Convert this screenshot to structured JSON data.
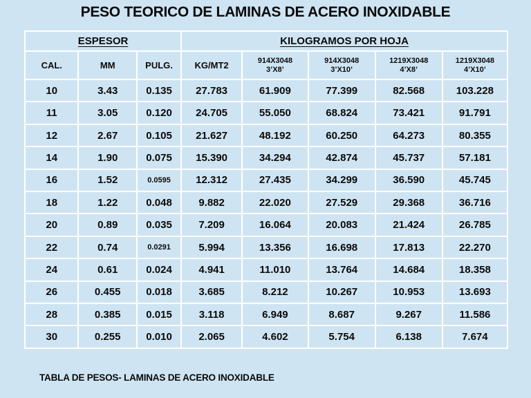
{
  "title": "PESO TEORICO DE LAMINAS DE ACERO INOXIDABLE",
  "footer": "TABLA DE PESOS- LAMINAS DE ACERO INOXIDABLE",
  "colors": {
    "background": "#cfe4f2",
    "grid": "#ffffff",
    "text": "#0a0a0a"
  },
  "table": {
    "group_headers": [
      {
        "label": "ESPESOR",
        "colspan": 3
      },
      {
        "label": "KILOGRAMOS POR HOJA",
        "colspan": 5
      }
    ],
    "columns": [
      {
        "label": "CAL."
      },
      {
        "label": "MM"
      },
      {
        "label": "PULG."
      },
      {
        "label": "KG/MT2"
      },
      {
        "label": "914X3048",
        "sublabel": "3’X8’"
      },
      {
        "label": "914X3048",
        "sublabel": "3’X10’"
      },
      {
        "label": "1219X3048",
        "sublabel": "4’X8’"
      },
      {
        "label": "1219X3048",
        "sublabel": "4’X10’"
      }
    ],
    "rows": [
      [
        "10",
        "3.43",
        "0.135",
        "27.783",
        "61.909",
        "77.399",
        "82.568",
        "103.228"
      ],
      [
        "11",
        "3.05",
        "0.120",
        "24.705",
        "55.050",
        "68.824",
        "73.421",
        "91.791"
      ],
      [
        "12",
        "2.67",
        "0.105",
        "21.627",
        "48.192",
        "60.250",
        "64.273",
        "80.355"
      ],
      [
        "14",
        "1.90",
        "0.075",
        "15.390",
        "34.294",
        "42.874",
        "45.737",
        "57.181"
      ],
      [
        "16",
        "1.52",
        "0.0595",
        "12.312",
        "27.435",
        "34.299",
        "36.590",
        "45.745"
      ],
      [
        "18",
        "1.22",
        "0.048",
        "9.882",
        "22.020",
        "27.529",
        "29.368",
        "36.716"
      ],
      [
        "20",
        "0.89",
        "0.035",
        "7.209",
        "16.064",
        "20.083",
        "21.424",
        "26.785"
      ],
      [
        "22",
        "0.74",
        "0.0291",
        "5.994",
        "13.356",
        "16.698",
        "17.813",
        "22.270"
      ],
      [
        "24",
        "0.61",
        "0.024",
        "4.941",
        "11.010",
        "13.764",
        "14.684",
        "18.358"
      ],
      [
        "26",
        "0.455",
        "0.018",
        "3.685",
        "8.212",
        "10.267",
        "10.953",
        "13.693"
      ],
      [
        "28",
        "0.385",
        "0.015",
        "3.118",
        "6.949",
        "8.687",
        "9.267",
        "11.586"
      ],
      [
        "30",
        "0.255",
        "0.010",
        "2.065",
        "4.602",
        "5.754",
        "6.138",
        "7.674"
      ]
    ]
  }
}
